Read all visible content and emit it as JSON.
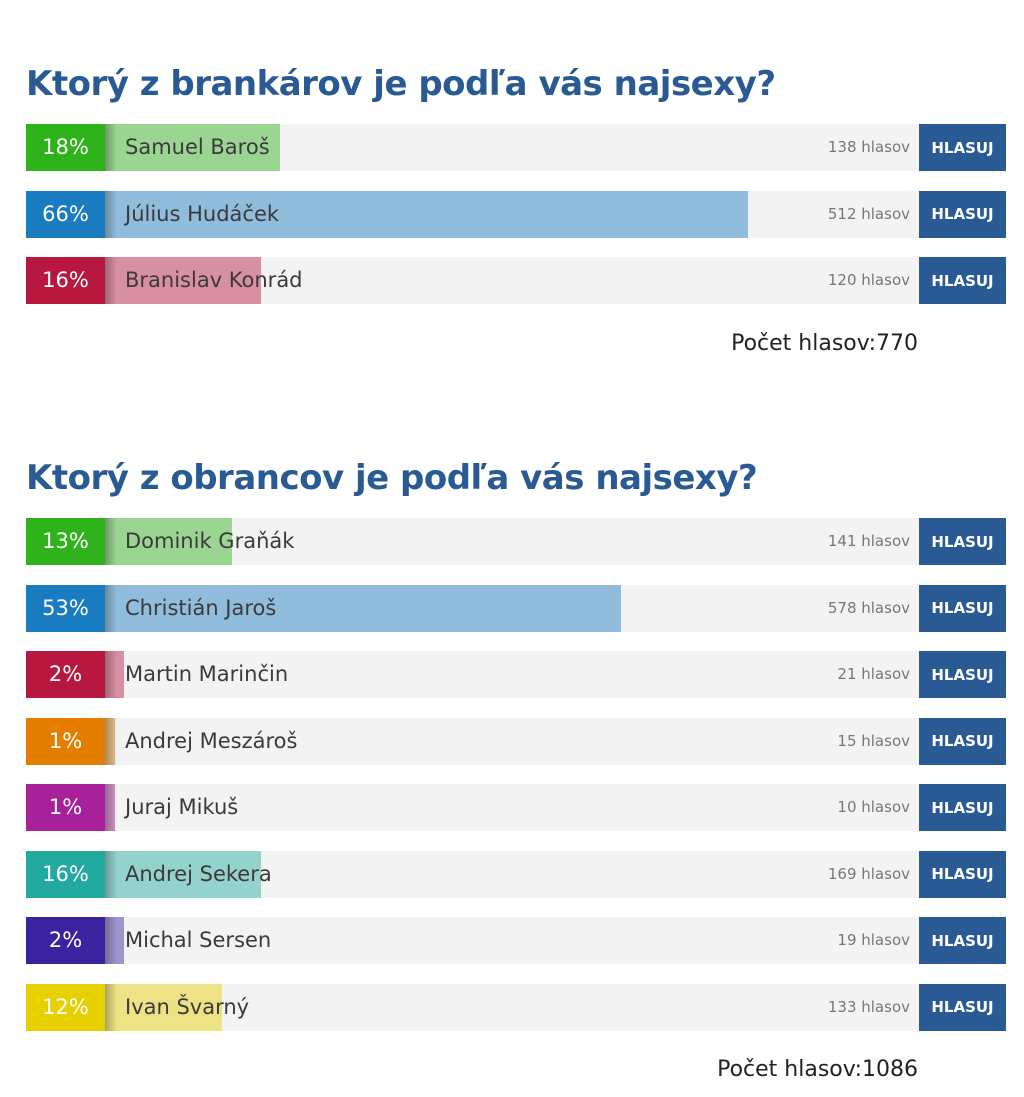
{
  "accent_color": "#2a5a94",
  "vote_label": "HLASUJ",
  "polls": [
    {
      "title": "Ktorý z brankárov je podľa vás najsexy?",
      "total_label": "Počet hlasov:",
      "total": "770",
      "options": [
        {
          "percent": "18%",
          "name": "Samuel Baroš",
          "votes": "138 hlasov",
          "share": 18,
          "color": "#2fb31b"
        },
        {
          "percent": "66%",
          "name": "Július Hudáček",
          "votes": "512 hlasov",
          "share": 66,
          "color": "#1a7cc0"
        },
        {
          "percent": "16%",
          "name": "Branislav Konrád",
          "votes": "120 hlasov",
          "share": 16,
          "color": "#b8173f"
        }
      ]
    },
    {
      "title": "Ktorý z obrancov je podľa vás najsexy?",
      "total_label": "Počet hlasov:",
      "total": "1086",
      "options": [
        {
          "percent": "13%",
          "name": "Dominik Graňák",
          "votes": "141 hlasov",
          "share": 13,
          "color": "#2fb31b"
        },
        {
          "percent": "53%",
          "name": "Christián Jaroš",
          "votes": "578 hlasov",
          "share": 53,
          "color": "#1a7cc0"
        },
        {
          "percent": "2%",
          "name": "Martin Marinčin",
          "votes": "21 hlasov",
          "share": 2,
          "color": "#b8173f"
        },
        {
          "percent": "1%",
          "name": "Andrej Meszároš",
          "votes": "15 hlasov",
          "share": 1,
          "color": "#e57d00"
        },
        {
          "percent": "1%",
          "name": "Juraj Mikuš",
          "votes": "10 hlasov",
          "share": 1,
          "color": "#a8209a"
        },
        {
          "percent": "16%",
          "name": "Andrej Sekera",
          "votes": "169 hlasov",
          "share": 16,
          "color": "#22aaa0"
        },
        {
          "percent": "2%",
          "name": "Michal Sersen",
          "votes": "19 hlasov",
          "share": 2,
          "color": "#3a22a0"
        },
        {
          "percent": "12%",
          "name": "Ivan Švarný",
          "votes": "133 hlasov",
          "share": 12,
          "color": "#e6d000"
        }
      ]
    }
  ]
}
